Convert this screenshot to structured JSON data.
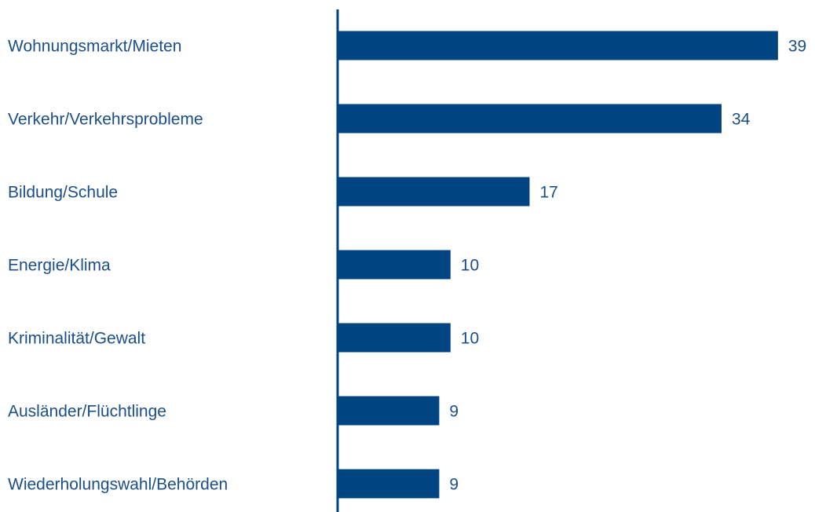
{
  "chart_data": {
    "type": "hbar",
    "categories": [
      "Wohnungsmarkt/Mieten",
      "Verkehr/Verkehrsprobleme",
      "Bildung/Schule",
      "Energie/Klima",
      "Kriminalität/Gewalt",
      "Ausländer/Flüchtlinge",
      "Wiederholungswahl/Behörden"
    ],
    "values": [
      39,
      34,
      17,
      10,
      10,
      9,
      9
    ],
    "color": "#004481",
    "xlim": [
      0,
      42
    ]
  }
}
